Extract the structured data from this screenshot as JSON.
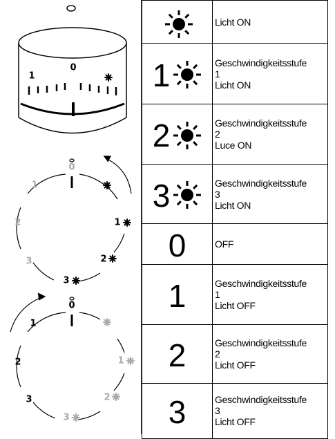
{
  "table": {
    "rows": [
      {
        "text": [
          "Licht ON"
        ]
      },
      {
        "symbol": "1",
        "text": [
          "Geschwindigkeitsstufe",
          "1",
          "Licht ON"
        ]
      },
      {
        "symbol": "2",
        "text": [
          "Geschwindigkeitsstufe",
          "2",
          "Luce ON"
        ]
      },
      {
        "symbol": "3",
        "text": [
          "Geschwindigkeitsstufe",
          "3",
          "Licht ON"
        ]
      },
      {
        "symbol": "0",
        "text": [
          "OFF"
        ]
      },
      {
        "symbol": "1",
        "text": [
          "Geschwindigkeitsstufe",
          "1",
          "Licht OFF"
        ]
      },
      {
        "symbol": "2",
        "text": [
          "Geschwindigkeitsstufe",
          "2",
          "Licht OFF"
        ]
      },
      {
        "symbol": "3",
        "text": [
          "Geschwindigkeitsstufe",
          "3",
          "Licht OFF"
        ]
      }
    ]
  },
  "knob": {
    "labels": [
      "1",
      "0"
    ]
  },
  "dial_light": {
    "labels": [
      "0",
      "1",
      "2",
      "3",
      "3",
      "2",
      "1"
    ]
  },
  "dial_off": {
    "labels": [
      "0",
      "1",
      "2",
      "3",
      "3",
      "2",
      "1"
    ]
  }
}
